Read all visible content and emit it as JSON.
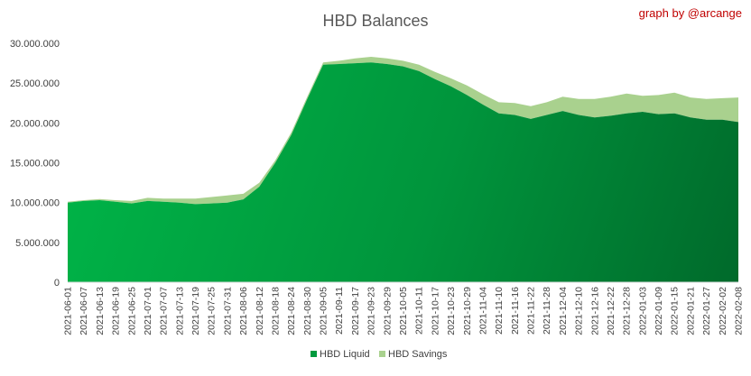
{
  "chart_data": {
    "type": "area",
    "stacked": true,
    "title": "HBD Balances",
    "credit": "graph by @arcange",
    "xlabel": "",
    "ylabel": "",
    "ylim": [
      0,
      30000000
    ],
    "yticks": [
      0,
      5000000,
      10000000,
      15000000,
      20000000,
      25000000,
      30000000
    ],
    "ytick_labels": [
      "0",
      "5.000.000",
      "10.000.000",
      "15.000.000",
      "20.000.000",
      "25.000.000",
      "30.000.000"
    ],
    "grid": false,
    "legend_position": "bottom",
    "x": [
      "2021-06-01",
      "2021-06-07",
      "2021-06-13",
      "2021-06-19",
      "2021-06-25",
      "2021-07-01",
      "2021-07-07",
      "2021-07-13",
      "2021-07-19",
      "2021-07-25",
      "2021-07-31",
      "2021-08-06",
      "2021-08-12",
      "2021-08-18",
      "2021-08-24",
      "2021-08-30",
      "2021-09-05",
      "2021-09-11",
      "2021-09-17",
      "2021-09-23",
      "2021-09-29",
      "2021-10-05",
      "2021-10-11",
      "2021-10-17",
      "2021-10-23",
      "2021-10-29",
      "2021-11-04",
      "2021-11-10",
      "2021-11-16",
      "2021-11-22",
      "2021-11-28",
      "2021-12-04",
      "2021-12-10",
      "2021-12-16",
      "2021-12-22",
      "2021-12-28",
      "2022-01-03",
      "2022-01-09",
      "2022-01-15",
      "2022-01-21",
      "2022-01-27",
      "2022-02-02",
      "2022-02-08"
    ],
    "series": [
      {
        "name": "HBD Liquid",
        "color": "#00a040",
        "values": [
          10000000,
          10200000,
          10300000,
          10100000,
          9900000,
          10200000,
          10100000,
          10000000,
          9800000,
          9900000,
          10000000,
          10400000,
          12000000,
          15000000,
          18500000,
          23000000,
          27300000,
          27400000,
          27500000,
          27600000,
          27400000,
          27100000,
          26500000,
          25500000,
          24600000,
          23500000,
          22300000,
          21200000,
          21000000,
          20500000,
          21000000,
          21500000,
          21000000,
          20700000,
          20900000,
          21200000,
          21400000,
          21100000,
          21200000,
          20700000,
          20400000,
          20400000,
          20100000
        ]
      },
      {
        "name": "HBD Savings",
        "color": "#a9d18e",
        "values": [
          100000,
          100000,
          150000,
          200000,
          300000,
          400000,
          400000,
          500000,
          700000,
          800000,
          900000,
          700000,
          500000,
          300000,
          300000,
          300000,
          300000,
          400000,
          600000,
          700000,
          700000,
          700000,
          800000,
          900000,
          1000000,
          1200000,
          1300000,
          1400000,
          1500000,
          1600000,
          1600000,
          1800000,
          2000000,
          2300000,
          2400000,
          2500000,
          2000000,
          2400000,
          2600000,
          2500000,
          2600000,
          2700000,
          3100000
        ]
      }
    ]
  }
}
